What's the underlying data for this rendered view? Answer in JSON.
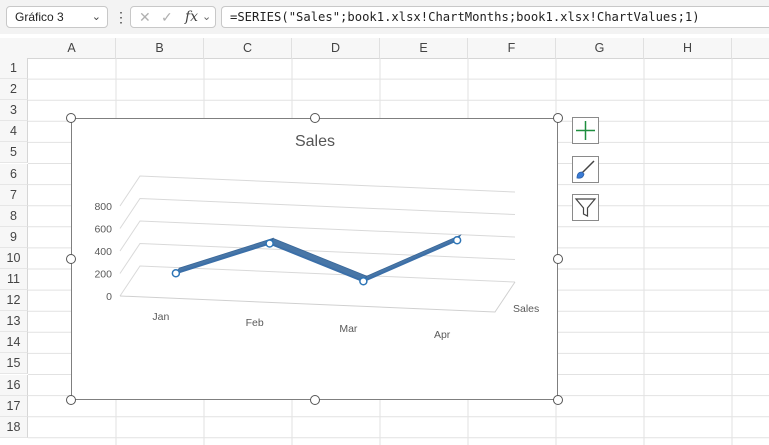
{
  "formula_bar": {
    "name_box": "Gráfico 3",
    "formula": "=SERIES(\"Sales\";book1.xlsx!ChartMonths;book1.xlsx!ChartValues;1)",
    "fx_symbol": "fx"
  },
  "columns": [
    "A",
    "B",
    "C",
    "D",
    "E",
    "F",
    "G",
    "H"
  ],
  "rows": [
    "1",
    "2",
    "3",
    "4",
    "5",
    "6",
    "7",
    "8",
    "9",
    "10",
    "11",
    "12",
    "13",
    "14",
    "15",
    "16",
    "17",
    "18"
  ],
  "chart_data": {
    "type": "line",
    "title": "Sales",
    "categories": [
      "Jan",
      "Feb",
      "Mar",
      "Apr"
    ],
    "series": [
      {
        "name": "Sales",
        "values": [
          100,
          400,
          100,
          500
        ]
      }
    ],
    "y_ticks": [
      "0",
      "200",
      "400",
      "600",
      "800"
    ],
    "ylim": [
      0,
      800
    ],
    "depth_label": "Sales",
    "grid": true,
    "style": "3d-line",
    "line_color": "#3b6fa8"
  },
  "side_buttons": {
    "elements": "chart-elements-icon",
    "styles": "chart-styles-icon",
    "filters": "chart-filters-icon"
  }
}
